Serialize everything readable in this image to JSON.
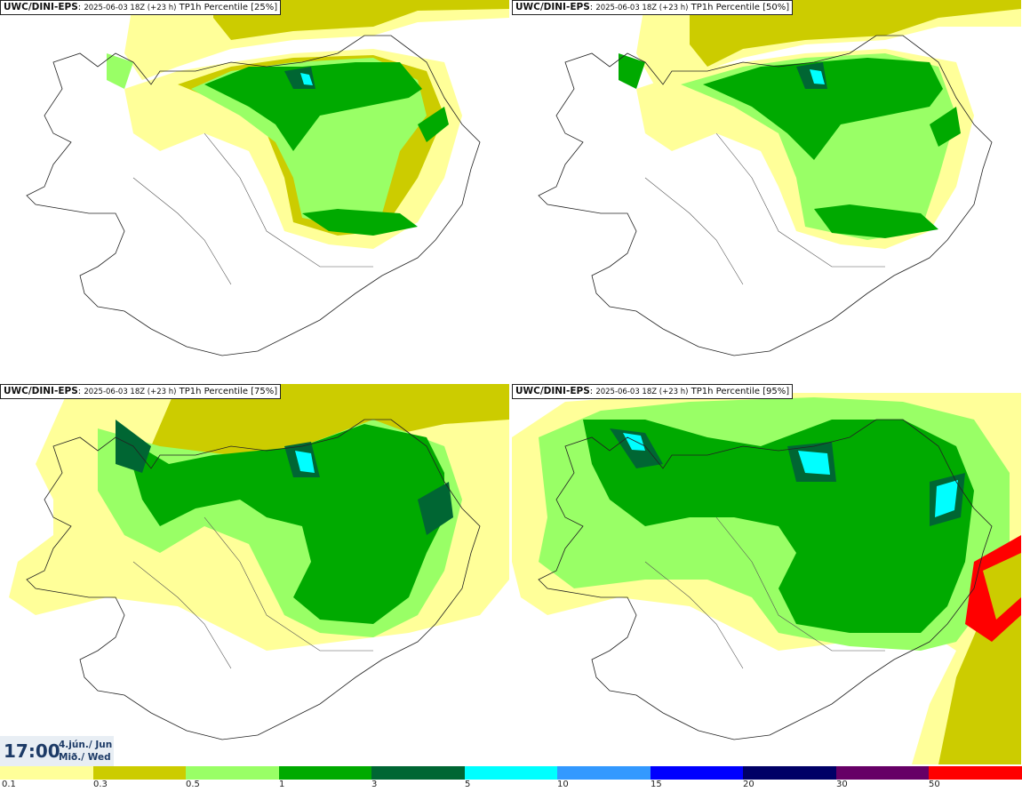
{
  "panels": [
    {
      "model": "UWC/DINI-EPS",
      "run": "2025-06-03 18Z (+23 h)",
      "product": "TP1h Percentile [25%]"
    },
    {
      "model": "UWC/DINI-EPS",
      "run": "2025-06-03 18Z (+23 h)",
      "product": "TP1h Percentile [50%]"
    },
    {
      "model": "UWC/DINI-EPS",
      "run": "2025-06-03 18Z (+23 h)",
      "product": "TP1h Percentile [75%]"
    },
    {
      "model": "UWC/DINI-EPS",
      "run": "2025-06-03 18Z (+23 h)",
      "product": "TP1h Percentile [95%]"
    }
  ],
  "valid_time": {
    "time": "17:00",
    "date_line1": "4.jún./ Jun",
    "date_line2": "Mið./ Wed"
  },
  "legend": {
    "colors": [
      "#ffff99",
      "#cccc00",
      "#99ff66",
      "#00aa00",
      "#006633",
      "#00ffff",
      "#3399ff",
      "#0000ff",
      "#000066",
      "#660066",
      "#ff0099",
      "#ff0000"
    ],
    "tick_labels": [
      "0.1",
      "0.3",
      "0.5",
      "1",
      "3",
      "5",
      "10",
      "15",
      "20",
      "30",
      "50"
    ]
  }
}
